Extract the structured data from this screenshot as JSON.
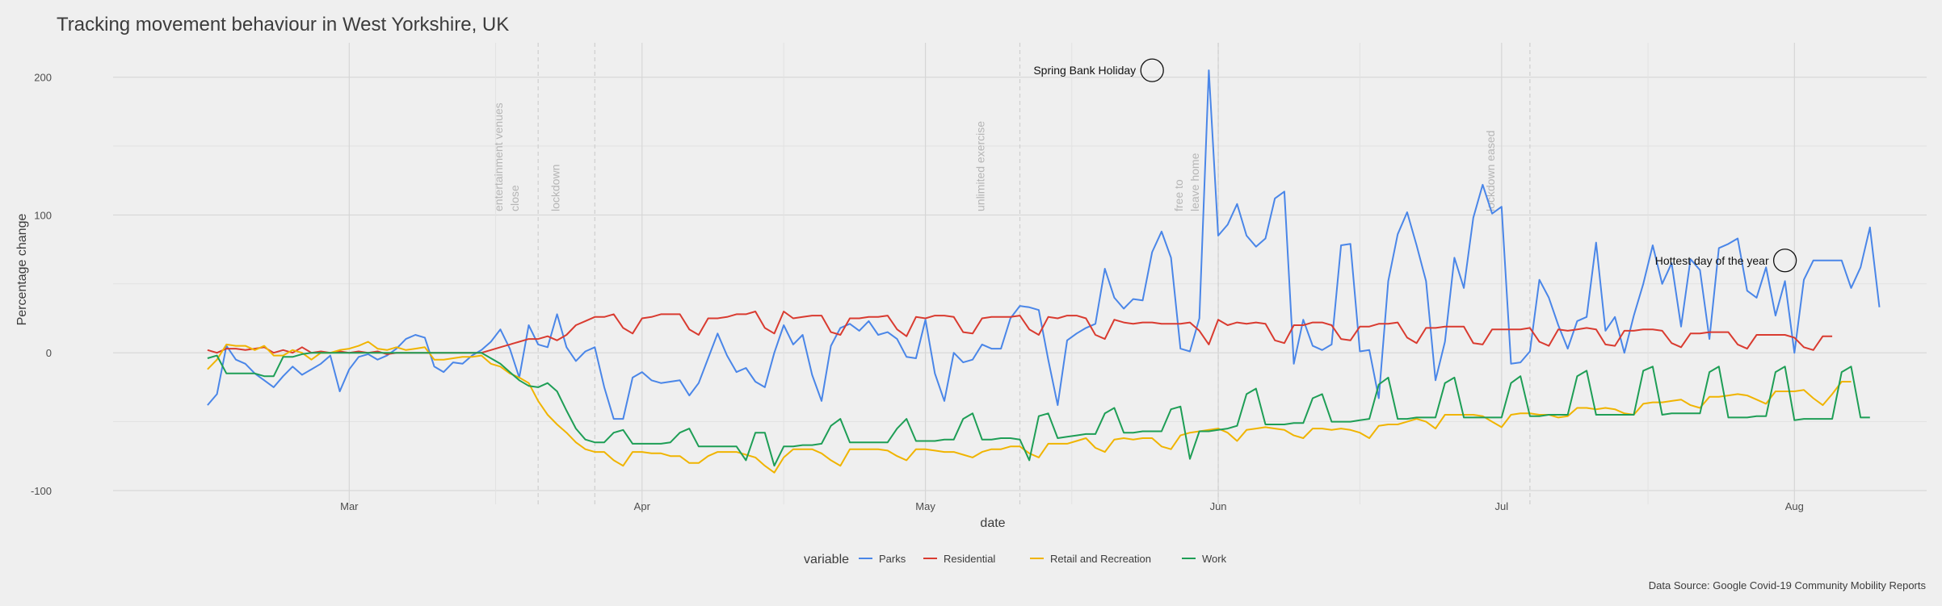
{
  "chart_data": {
    "type": "line",
    "title": "Tracking movement behaviour in West Yorkshire, UK",
    "xlabel": "date",
    "ylabel": "Percentage change",
    "caption": "Data Source: Google Covid-19 Community Mobility Reports",
    "legend_title": "variable",
    "legend_position": "bottom",
    "grid": true,
    "x_start": "2020-02-15",
    "x_end": "2020-08-04",
    "xlim": [
      "2020-02-05",
      "2020-08-15"
    ],
    "ylim": [
      -110,
      225
    ],
    "x_ticks": [
      {
        "date": "2020-03-01",
        "label": "Mar"
      },
      {
        "date": "2020-04-01",
        "label": "Apr"
      },
      {
        "date": "2020-05-01",
        "label": "May"
      },
      {
        "date": "2020-06-01",
        "label": "Jun"
      },
      {
        "date": "2020-07-01",
        "label": "Jul"
      },
      {
        "date": "2020-08-01",
        "label": "Aug"
      }
    ],
    "y_ticks": [
      -100,
      0,
      100,
      200
    ],
    "events": [
      {
        "date": "2020-03-21",
        "label": "entertainment venues close"
      },
      {
        "date": "2020-03-27",
        "label": "lockdown"
      },
      {
        "date": "2020-05-11",
        "label": "unlimited exercise"
      },
      {
        "date": "2020-06-01",
        "label": "free to leave home"
      },
      {
        "date": "2020-07-04",
        "label": "lockdown eased"
      }
    ],
    "annotations": [
      {
        "date": "2020-05-25",
        "value": 205,
        "label": "Spring Bank Holiday"
      },
      {
        "date": "2020-07-31",
        "value": 67,
        "label": "Hottest day of the year"
      }
    ],
    "series": [
      {
        "name": "Parks",
        "color": "#4a86e8",
        "values": [
          -38,
          -30,
          5,
          -5,
          -8,
          -15,
          -20,
          -25,
          -17,
          -10,
          -16,
          -12,
          -8,
          -2,
          -28,
          -12,
          -3,
          -1,
          -5,
          -2,
          3,
          10,
          13,
          11,
          -10,
          -14,
          -7,
          -8,
          -2,
          2,
          8,
          17,
          3,
          -18,
          20,
          6,
          4,
          28,
          4,
          -6,
          1,
          4,
          -25,
          -48,
          -48,
          -18,
          -14,
          -20,
          -22,
          -21,
          -20,
          -31,
          -22,
          -4,
          14,
          -2,
          -14,
          -11,
          -21,
          -25,
          0,
          20,
          6,
          13,
          -16,
          -35,
          5,
          18,
          21,
          16,
          23,
          13,
          15,
          10,
          -3,
          -4,
          24,
          -15,
          -35,
          0,
          -7,
          -5,
          6,
          3,
          3,
          25,
          34,
          33,
          31,
          -5,
          -38,
          9,
          14,
          18,
          21,
          61,
          40,
          32,
          39,
          38,
          73,
          88,
          69,
          3,
          1,
          25,
          205,
          85,
          93,
          108,
          85,
          77,
          83,
          112,
          117,
          -8,
          24,
          5,
          2,
          6,
          78,
          79,
          1,
          2,
          -33,
          52,
          86,
          102,
          78,
          52,
          -20,
          8,
          69,
          47,
          98,
          122,
          101,
          106,
          -8,
          -7,
          1,
          53,
          40,
          20,
          3,
          23,
          26,
          80,
          16,
          26,
          0,
          27,
          50,
          78,
          50,
          65,
          19,
          68,
          60,
          10,
          76,
          79,
          83,
          45,
          40,
          62,
          27,
          52,
          0,
          53,
          67,
          67,
          67,
          67,
          47,
          62,
          91,
          33
        ]
      },
      {
        "name": "Residential",
        "color": "#d93b30",
        "values": [
          2,
          0,
          3,
          3,
          2,
          3,
          4,
          0,
          2,
          0,
          4,
          0,
          1,
          0,
          1,
          0,
          1,
          0,
          1,
          -1,
          0,
          0,
          0,
          0,
          0,
          0,
          0,
          0,
          0,
          0,
          2,
          4,
          6,
          8,
          10,
          10,
          12,
          9,
          13,
          20,
          23,
          26,
          26,
          28,
          18,
          14,
          25,
          26,
          28,
          28,
          28,
          17,
          13,
          25,
          25,
          26,
          28,
          28,
          30,
          18,
          14,
          30,
          25,
          26,
          27,
          27,
          15,
          13,
          25,
          25,
          26,
          26,
          27,
          17,
          12,
          26,
          25,
          27,
          27,
          26,
          15,
          14,
          25,
          26,
          26,
          26,
          27,
          17,
          13,
          26,
          25,
          27,
          27,
          25,
          13,
          10,
          24,
          22,
          21,
          22,
          22,
          21,
          21,
          21,
          22,
          16,
          6,
          24,
          20,
          22,
          21,
          22,
          21,
          9,
          7,
          20,
          20,
          22,
          22,
          20,
          10,
          9,
          19,
          19,
          21,
          21,
          22,
          11,
          7,
          18,
          18,
          19,
          19,
          19,
          7,
          6,
          17,
          17,
          17,
          17,
          18,
          8,
          5,
          17,
          16,
          17,
          18,
          17,
          6,
          5,
          16,
          16,
          17,
          17,
          16,
          7,
          4,
          14,
          14,
          15,
          15,
          15,
          6,
          3,
          13,
          13,
          13,
          13,
          11,
          4,
          2,
          12,
          12
        ]
      },
      {
        "name": "Retail and Recreation",
        "color": "#f0b400",
        "values": [
          -12,
          -5,
          6,
          5,
          5,
          2,
          5,
          -2,
          -2,
          2,
          0,
          -5,
          0,
          0,
          2,
          3,
          5,
          8,
          3,
          2,
          4,
          2,
          3,
          4,
          -5,
          -5,
          -4,
          -3,
          -3,
          -2,
          -8,
          -10,
          -15,
          -18,
          -22,
          -35,
          -45,
          -52,
          -58,
          -65,
          -70,
          -72,
          -72,
          -78,
          -82,
          -72,
          -72,
          -73,
          -73,
          -75,
          -75,
          -80,
          -80,
          -75,
          -72,
          -72,
          -72,
          -74,
          -76,
          -82,
          -87,
          -76,
          -70,
          -70,
          -70,
          -73,
          -78,
          -82,
          -70,
          -70,
          -70,
          -70,
          -71,
          -75,
          -78,
          -70,
          -70,
          -71,
          -72,
          -72,
          -74,
          -76,
          -72,
          -70,
          -70,
          -68,
          -68,
          -73,
          -76,
          -66,
          -66,
          -66,
          -64,
          -62,
          -69,
          -72,
          -63,
          -62,
          -63,
          -62,
          -62,
          -68,
          -70,
          -60,
          -58,
          -57,
          -56,
          -55,
          -58,
          -64,
          -56,
          -55,
          -54,
          -55,
          -56,
          -60,
          -62,
          -55,
          -55,
          -56,
          -55,
          -56,
          -58,
          -62,
          -53,
          -52,
          -52,
          -50,
          -48,
          -50,
          -55,
          -45,
          -45,
          -45,
          -45,
          -46,
          -50,
          -54,
          -45,
          -44,
          -44,
          -45,
          -45,
          -47,
          -46,
          -40,
          -40,
          -41,
          -40,
          -41,
          -44,
          -45,
          -37,
          -36,
          -36,
          -35,
          -34,
          -38,
          -40,
          -32,
          -32,
          -31,
          -30,
          -31,
          -34,
          -37,
          -28,
          -28,
          -28,
          -27,
          -33,
          -38,
          -30,
          -21,
          -21
        ]
      },
      {
        "name": "Work",
        "color": "#1e9e56",
        "values": [
          -4,
          -2,
          -15,
          -15,
          -15,
          -15,
          -17,
          -17,
          -3,
          -3,
          -1,
          0,
          0,
          0,
          0,
          0,
          0,
          0,
          0,
          0,
          0,
          0,
          0,
          0,
          0,
          0,
          0,
          0,
          0,
          0,
          -4,
          -8,
          -14,
          -20,
          -24,
          -25,
          -22,
          -28,
          -42,
          -55,
          -63,
          -65,
          -65,
          -58,
          -56,
          -66,
          -66,
          -66,
          -66,
          -65,
          -58,
          -55,
          -68,
          -68,
          -68,
          -68,
          -68,
          -78,
          -58,
          -58,
          -82,
          -68,
          -68,
          -67,
          -67,
          -66,
          -53,
          -48,
          -65,
          -65,
          -65,
          -65,
          -65,
          -55,
          -48,
          -64,
          -64,
          -64,
          -63,
          -63,
          -48,
          -44,
          -63,
          -63,
          -62,
          -62,
          -63,
          -78,
          -46,
          -44,
          -62,
          -61,
          -60,
          -59,
          -59,
          -44,
          -40,
          -58,
          -58,
          -57,
          -57,
          -57,
          -41,
          -39,
          -77,
          -57,
          -57,
          -56,
          -55,
          -53,
          -30,
          -26,
          -52,
          -52,
          -52,
          -51,
          -51,
          -33,
          -30,
          -50,
          -50,
          -50,
          -49,
          -48,
          -23,
          -18,
          -48,
          -48,
          -47,
          -47,
          -47,
          -22,
          -18,
          -47,
          -47,
          -47,
          -47,
          -47,
          -22,
          -17,
          -46,
          -46,
          -45,
          -45,
          -45,
          -17,
          -13,
          -45,
          -45,
          -45,
          -45,
          -45,
          -13,
          -10,
          -45,
          -44,
          -44,
          -44,
          -44,
          -14,
          -10,
          -47,
          -47,
          -47,
          -46,
          -46,
          -14,
          -10,
          -49,
          -48,
          -48,
          -48,
          -48,
          -14,
          -10,
          -47,
          -47
        ]
      }
    ]
  }
}
